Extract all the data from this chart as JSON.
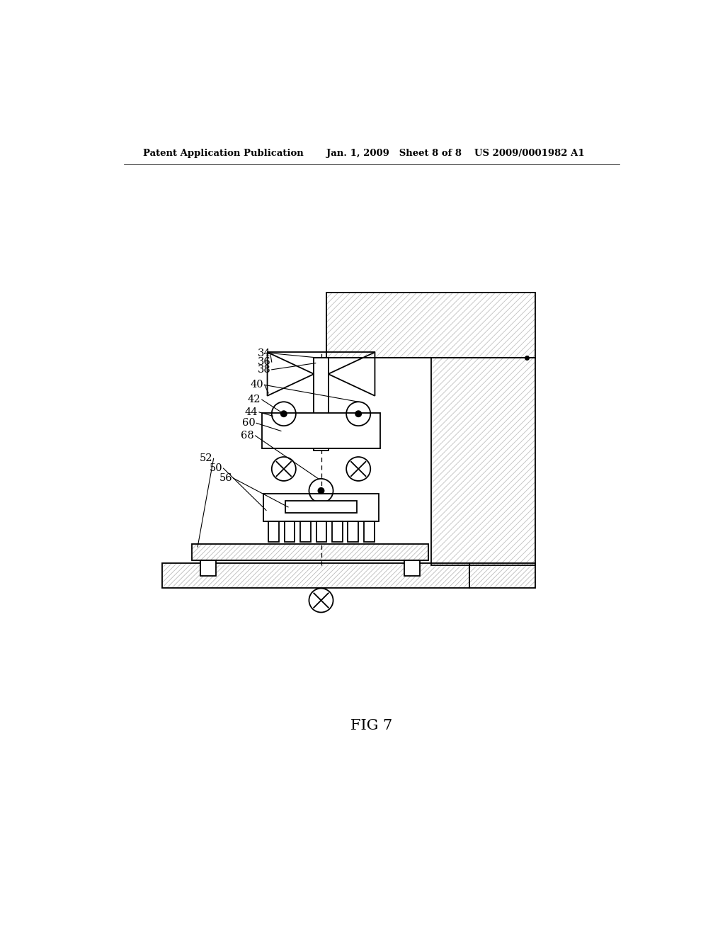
{
  "bg_color": "#ffffff",
  "line_color": "#000000",
  "header_left": "Patent Application Publication",
  "header_mid": "Jan. 1, 2009   Sheet 8 of 8",
  "header_right": "US 2009/0001982 A1",
  "fig_label": "FIG 7"
}
